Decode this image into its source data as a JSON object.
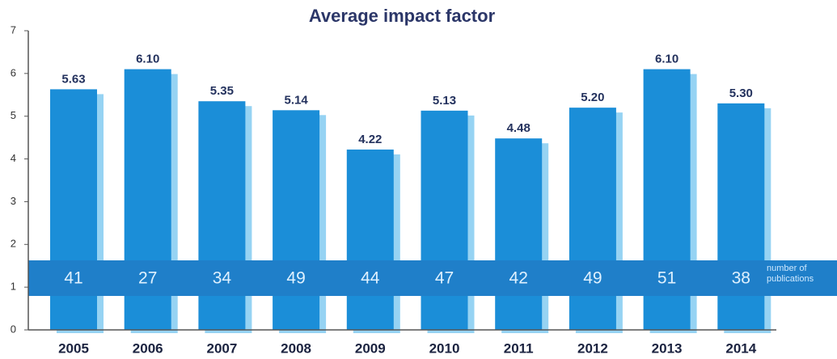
{
  "chart_data": {
    "type": "bar",
    "title": "Average impact factor",
    "categories": [
      "2005",
      "2006",
      "2007",
      "2008",
      "2009",
      "2010",
      "2011",
      "2012",
      "2013",
      "2014"
    ],
    "values": [
      5.63,
      6.1,
      5.35,
      5.14,
      4.22,
      5.13,
      4.48,
      5.2,
      6.1,
      5.3
    ],
    "value_labels": [
      "5.63",
      "6.10",
      "5.35",
      "5.14",
      "4.22",
      "5.13",
      "4.48",
      "5.20",
      "6.10",
      "5.30"
    ],
    "color": "#1b8ed8",
    "publications": {
      "name": "number of publications",
      "values": [
        41,
        27,
        34,
        49,
        44,
        47,
        42,
        49,
        51,
        38
      ]
    },
    "ylim": [
      0,
      7
    ],
    "yticks": [
      0,
      1,
      2,
      3,
      4,
      5,
      6,
      7
    ]
  }
}
